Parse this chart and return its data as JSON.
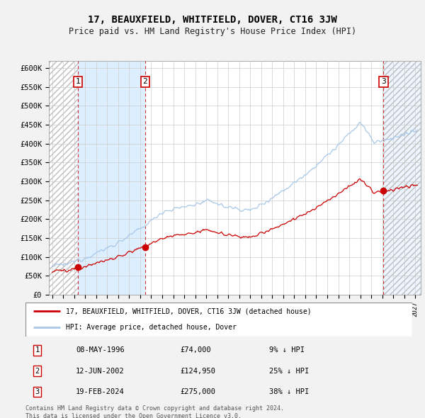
{
  "title": "17, BEAUXFIELD, WHITFIELD, DOVER, CT16 3JW",
  "subtitle": "Price paid vs. HM Land Registry's House Price Index (HPI)",
  "ylim": [
    0,
    620000
  ],
  "xlim_start": 1993.7,
  "xlim_end": 2027.5,
  "yticks": [
    0,
    50000,
    100000,
    150000,
    200000,
    250000,
    300000,
    350000,
    400000,
    450000,
    500000,
    550000,
    600000
  ],
  "ytick_labels": [
    "£0",
    "£50K",
    "£100K",
    "£150K",
    "£200K",
    "£250K",
    "£300K",
    "£350K",
    "£400K",
    "£450K",
    "£500K",
    "£550K",
    "£600K"
  ],
  "hpi_color": "#a8c8e8",
  "price_color": "#cc0000",
  "marker_color": "#cc0000",
  "fig_bg": "#f0f0f0",
  "plot_bg": "#ffffff",
  "grid_color": "#cccccc",
  "dashed_line_color": "#cc3333",
  "shade_color": "#ddeeff",
  "hatch_color": "#cccccc",
  "transactions": [
    {
      "date_year": 1996.36,
      "price": 74000,
      "label": "1"
    },
    {
      "date_year": 2002.45,
      "price": 124950,
      "label": "2"
    },
    {
      "date_year": 2024.12,
      "price": 275000,
      "label": "3"
    }
  ],
  "legend_line1": "17, BEAUXFIELD, WHITFIELD, DOVER, CT16 3JW (detached house)",
  "legend_line2": "HPI: Average price, detached house, Dover",
  "footer": "Contains HM Land Registry data © Crown copyright and database right 2024.\nThis data is licensed under the Open Government Licence v3.0.",
  "table_rows": [
    [
      "1",
      "08-MAY-1996",
      "£74,000",
      "9% ↓ HPI"
    ],
    [
      "2",
      "12-JUN-2002",
      "£124,950",
      "25% ↓ HPI"
    ],
    [
      "3",
      "19-FEB-2024",
      "£275,000",
      "38% ↓ HPI"
    ]
  ]
}
